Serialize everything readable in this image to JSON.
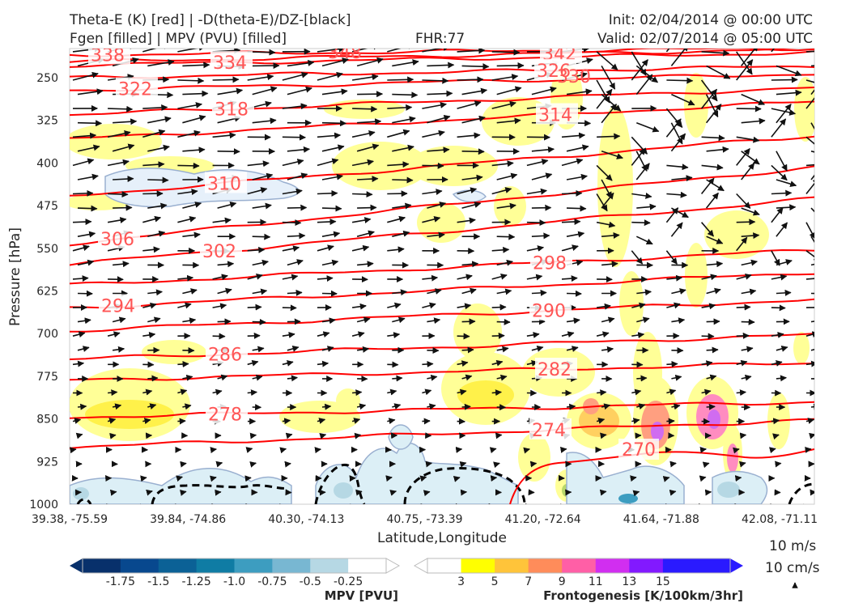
{
  "header": {
    "title_line1": "Theta-E (K) [red] | -D(theta-E)/DZ-[black]",
    "title_line2": "Fgen [filled] | MPV (PVU) [filled]",
    "fhr": "FHR:77",
    "init": "Init: 02/04/2014 @ 00:00 UTC",
    "valid": "Valid: 02/07/2014 @ 05:00 UTC"
  },
  "chart_data": {
    "type": "cross-section",
    "xlabel": "Latitude,Longitude",
    "ylabel": "Pressure [hPa]",
    "x_ticks": [
      "39.38, -75.59",
      "39.84, -74.86",
      "40.30, -74.13",
      "40.75, -73.39",
      "41.20, -72.64",
      "41.64, -71.88",
      "42.08, -71.11"
    ],
    "y_ticks": [
      "250",
      "325",
      "400",
      "475",
      "550",
      "625",
      "700",
      "775",
      "850",
      "925",
      "1000"
    ],
    "y_tick_values": [
      250,
      325,
      400,
      475,
      550,
      625,
      700,
      775,
      850,
      925,
      1000
    ],
    "ylim": [
      1000,
      200
    ],
    "theta_e_contours": [
      {
        "value": 338,
        "label": "338",
        "y_start": 210,
        "y_end": 198
      },
      {
        "value": 334,
        "label": "334",
        "y_start": 228,
        "y_end": 206
      },
      {
        "value": 342,
        "label": "342",
        "y_start": 222,
        "y_end": 200
      },
      {
        "value": 326,
        "label": "326",
        "y_start": 250,
        "y_end": 230
      },
      {
        "value": 322,
        "label": "322",
        "y_start": 272,
        "y_end": 243
      },
      {
        "value": 318,
        "label": "318",
        "y_start": 315,
        "y_end": 268
      },
      {
        "value": 314,
        "label": "314",
        "y_start": 358,
        "y_end": 292
      },
      {
        "value": 310,
        "label": "310",
        "y_start": 458,
        "y_end": 352
      },
      {
        "value": 306,
        "label": "306",
        "y_start": 542,
        "y_end": 407
      },
      {
        "value": 302,
        "label": "302",
        "y_start": 578,
        "y_end": 463
      },
      {
        "value": 298,
        "label": "298",
        "y_start": 615,
        "y_end": 553
      },
      {
        "value": 294,
        "label": "294",
        "y_start": 655,
        "y_end": 592
      },
      {
        "value": 290,
        "label": "290",
        "y_start": 695,
        "y_end": 640
      },
      {
        "value": 286,
        "label": "286",
        "y_start": 745,
        "y_end": 702
      },
      {
        "value": 282,
        "label": "282",
        "y_start": 782,
        "y_end": 752
      },
      {
        "value": 278,
        "label": "278",
        "y_start": 847,
        "y_end": 820
      },
      {
        "value": 274,
        "label": "274",
        "y_start": 900,
        "y_end": 852
      }
    ],
    "theta_e_label_270": "270",
    "theta_e_label_348": "348",
    "theta_e_label_330": "330"
  },
  "colorbar_mpv": {
    "title": "MPV [PVU]",
    "ticks": [
      "-1.75",
      "-1.5",
      "-1.25",
      "-1.0",
      "-0.75",
      "-0.5",
      "-0.25"
    ],
    "colors": [
      "#08306b",
      "#08488e",
      "#0b6196",
      "#0f7ca4",
      "#3d9dc0",
      "#78b7d2",
      "#b6d8e4",
      "#ffffff"
    ]
  },
  "colorbar_fgen": {
    "title": "Frontogenesis [K/100km/3hr]",
    "ticks": [
      "3",
      "5",
      "7",
      "9",
      "11",
      "13",
      "15"
    ],
    "colors": [
      "#ffffff",
      "#ffff00",
      "#ffc43a",
      "#ff8c5a",
      "#ff5fa6",
      "#d12ef0",
      "#8219ff",
      "#2a1aff",
      "#2a1aff"
    ]
  },
  "vector_key": {
    "label_top": "10 m/s",
    "label_bottom": "10 cm/s"
  }
}
